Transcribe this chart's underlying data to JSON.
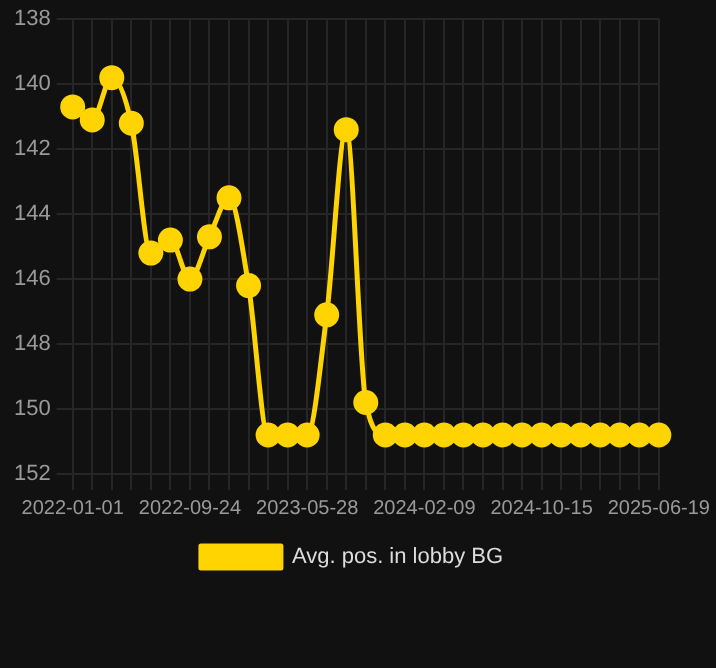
{
  "chart_data": {
    "type": "line",
    "categories": [
      "2022-01-01",
      null,
      null,
      null,
      null,
      null,
      "2022-09-24",
      null,
      null,
      null,
      null,
      null,
      "2023-05-28",
      null,
      null,
      null,
      null,
      null,
      "2024-02-09",
      null,
      null,
      null,
      null,
      null,
      "2024-10-15",
      null,
      null,
      null,
      null,
      null,
      "2025-06-19"
    ],
    "series": [
      {
        "name": "Avg. pos. in lobby BG",
        "color": "#ffd400",
        "values": [
          140.7,
          141.1,
          139.8,
          141.2,
          145.2,
          144.8,
          146.0,
          144.7,
          143.5,
          146.2,
          150.8,
          150.8,
          150.8,
          147.1,
          141.4,
          149.8,
          150.8,
          150.8,
          150.8,
          150.8,
          150.8,
          150.8,
          150.8,
          150.8,
          150.8,
          150.8,
          150.8,
          150.8,
          150.8,
          150.8,
          150.8
        ]
      }
    ],
    "ylim": [
      152,
      138
    ],
    "yticks": [
      138,
      140,
      142,
      144,
      146,
      148,
      150,
      152
    ],
    "grid": true,
    "legend": "bottom",
    "marker": "circle",
    "line_style": "solid"
  }
}
